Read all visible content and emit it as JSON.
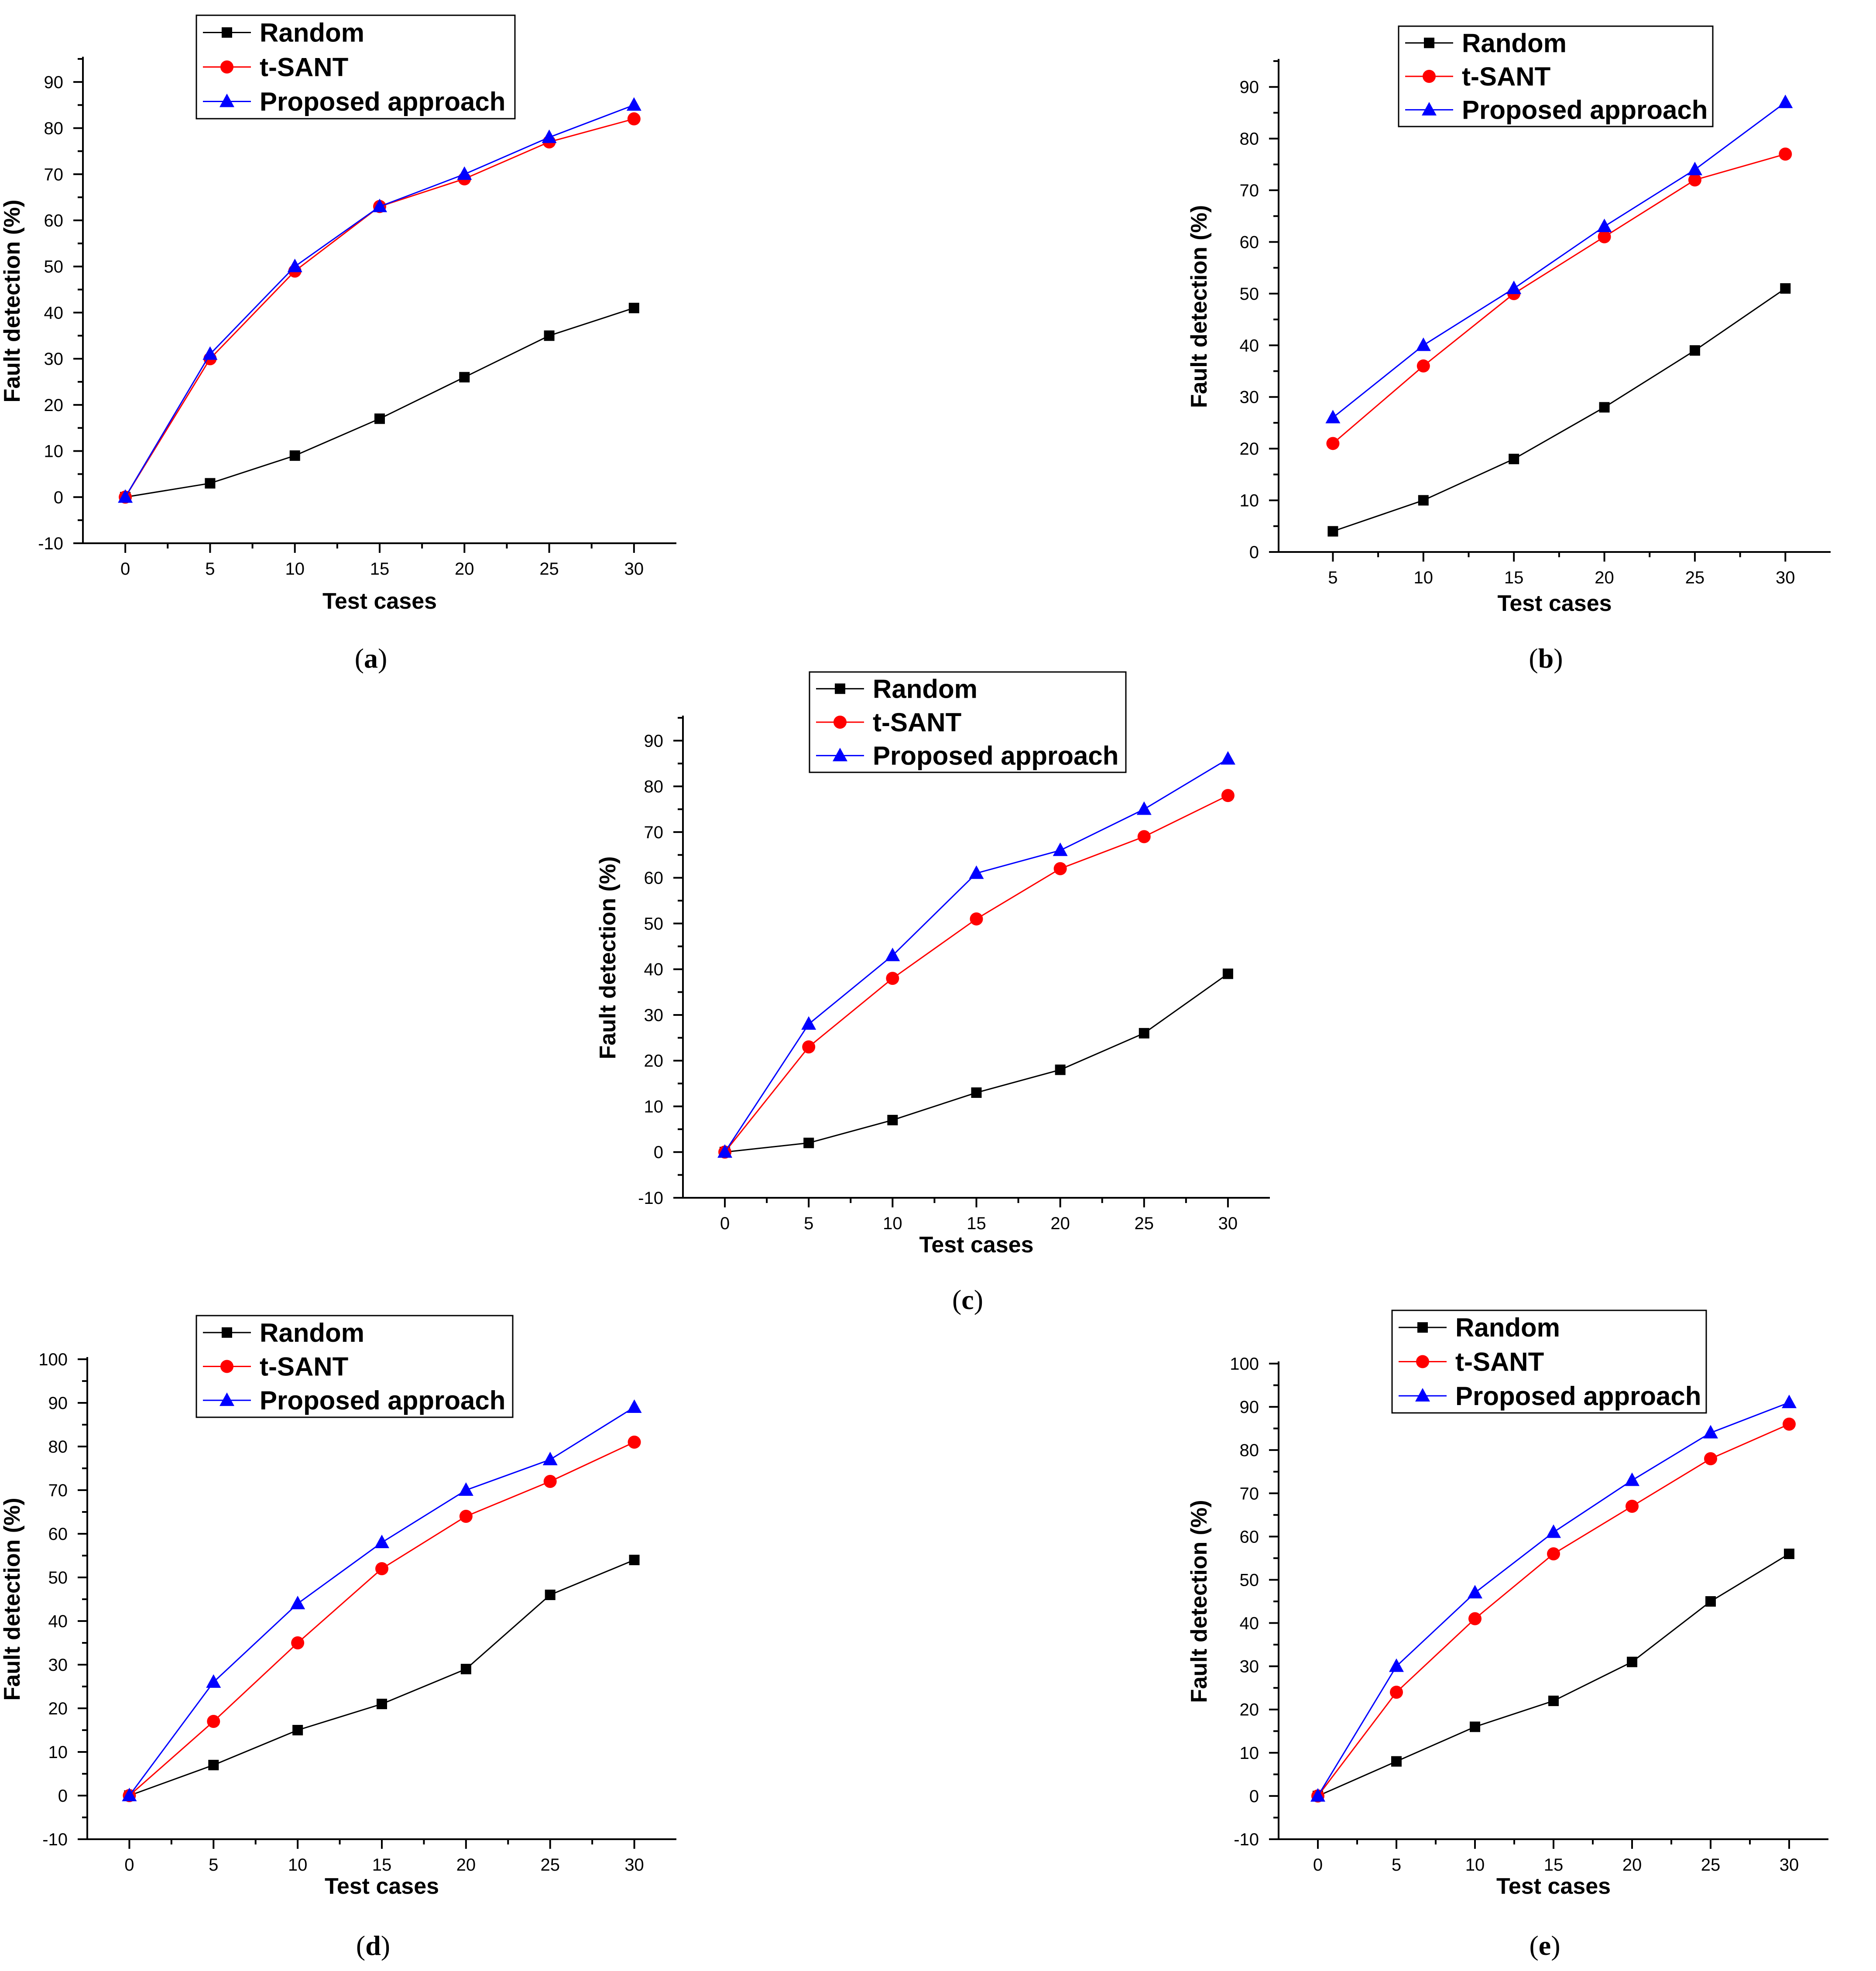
{
  "chart_data": [
    {
      "id": "a",
      "type": "line",
      "caption": "a",
      "xlabel": "Test cases",
      "ylabel": "Fault detection (%)",
      "xlim": [
        -2.5,
        32.5
      ],
      "ylim": [
        -10,
        95
      ],
      "xticks": [
        0,
        5,
        10,
        15,
        20,
        25,
        30
      ],
      "yticks": [
        -10,
        0,
        10,
        20,
        30,
        40,
        50,
        60,
        70,
        80,
        90
      ],
      "series": [
        {
          "name": "Random",
          "color": "#000000",
          "marker": "square",
          "x": [
            0,
            5,
            10,
            15,
            20,
            25,
            30
          ],
          "values": [
            0,
            3,
            9,
            17,
            26,
            35,
            41
          ]
        },
        {
          "name": "t-SANT",
          "color": "#ff0000",
          "marker": "circle",
          "x": [
            0,
            5,
            10,
            15,
            20,
            25,
            30
          ],
          "values": [
            0,
            30,
            49,
            63,
            69,
            77,
            82
          ]
        },
        {
          "name": "Proposed approach",
          "color": "#0000ff",
          "marker": "triangle",
          "x": [
            0,
            5,
            10,
            15,
            20,
            25,
            30
          ],
          "values": [
            0,
            31,
            50,
            63,
            70,
            78,
            85
          ]
        }
      ]
    },
    {
      "id": "b",
      "type": "line",
      "caption": "b",
      "xlabel": "Test cases",
      "ylabel": "Fault detection (%)",
      "xlim": [
        2.0,
        32.5
      ],
      "ylim": [
        0,
        95
      ],
      "xticks": [
        5,
        10,
        15,
        20,
        25,
        30
      ],
      "yticks": [
        0,
        10,
        20,
        30,
        40,
        50,
        60,
        70,
        80,
        90
      ],
      "series": [
        {
          "name": "Random",
          "color": "#000000",
          "marker": "square",
          "x": [
            5,
            10,
            15,
            20,
            25,
            30
          ],
          "values": [
            4,
            10,
            18,
            28,
            39,
            51
          ]
        },
        {
          "name": "t-SANT",
          "color": "#ff0000",
          "marker": "circle",
          "x": [
            5,
            10,
            15,
            20,
            25,
            30
          ],
          "values": [
            21,
            36,
            50,
            61,
            72,
            77
          ]
        },
        {
          "name": "Proposed approach",
          "color": "#0000ff",
          "marker": "triangle",
          "x": [
            5,
            10,
            15,
            20,
            25,
            30
          ],
          "values": [
            26,
            40,
            51,
            63,
            74,
            87
          ]
        }
      ]
    },
    {
      "id": "c",
      "type": "line",
      "caption": "c",
      "xlabel": "Test cases",
      "ylabel": "Fault detection (%)",
      "xlim": [
        -2.5,
        32.5
      ],
      "ylim": [
        -10,
        95
      ],
      "xticks": [
        0,
        5,
        10,
        15,
        20,
        25,
        30
      ],
      "yticks": [
        -10,
        0,
        10,
        20,
        30,
        40,
        50,
        60,
        70,
        80,
        90
      ],
      "series": [
        {
          "name": "Random",
          "color": "#000000",
          "marker": "square",
          "x": [
            0,
            5,
            10,
            15,
            20,
            25,
            30
          ],
          "values": [
            0,
            2,
            7,
            13,
            18,
            26,
            39
          ]
        },
        {
          "name": "t-SANT",
          "color": "#ff0000",
          "marker": "circle",
          "x": [
            0,
            5,
            10,
            15,
            20,
            25,
            30
          ],
          "values": [
            0,
            23,
            38,
            51,
            62,
            69,
            78
          ]
        },
        {
          "name": "Proposed approach",
          "color": "#0000ff",
          "marker": "triangle",
          "x": [
            0,
            5,
            10,
            15,
            20,
            25,
            30
          ],
          "values": [
            0,
            28,
            43,
            61,
            66,
            75,
            86
          ]
        }
      ]
    },
    {
      "id": "d",
      "type": "line",
      "caption": "d",
      "xlabel": "Test cases",
      "ylabel": "Fault detection (%)",
      "xlim": [
        -2.5,
        32.5
      ],
      "ylim": [
        -10,
        100
      ],
      "xticks": [
        0,
        5,
        10,
        15,
        20,
        25,
        30
      ],
      "yticks": [
        -10,
        0,
        10,
        20,
        30,
        40,
        50,
        60,
        70,
        80,
        90,
        100
      ],
      "series": [
        {
          "name": "Random",
          "color": "#000000",
          "marker": "square",
          "x": [
            0,
            5,
            10,
            15,
            20,
            25,
            30
          ],
          "values": [
            0,
            7,
            15,
            21,
            29,
            46,
            54
          ]
        },
        {
          "name": "t-SANT",
          "color": "#ff0000",
          "marker": "circle",
          "x": [
            0,
            5,
            10,
            15,
            20,
            25,
            30
          ],
          "values": [
            0,
            17,
            35,
            52,
            64,
            72,
            81
          ]
        },
        {
          "name": "Proposed approach",
          "color": "#0000ff",
          "marker": "triangle",
          "x": [
            0,
            5,
            10,
            15,
            20,
            25,
            30
          ],
          "values": [
            0,
            26,
            44,
            58,
            70,
            77,
            89
          ]
        }
      ]
    },
    {
      "id": "e",
      "type": "line",
      "caption": "e",
      "xlabel": "Test cases",
      "ylabel": "Fault detection (%)",
      "xlim": [
        -2.5,
        32.5
      ],
      "ylim": [
        -10,
        100
      ],
      "xticks": [
        0,
        5,
        10,
        15,
        20,
        25,
        30
      ],
      "yticks": [
        -10,
        0,
        10,
        20,
        30,
        40,
        50,
        60,
        70,
        80,
        90,
        100
      ],
      "series": [
        {
          "name": "Random",
          "color": "#000000",
          "marker": "square",
          "x": [
            0,
            5,
            10,
            15,
            20,
            25,
            30
          ],
          "values": [
            0,
            8,
            16,
            22,
            31,
            45,
            56
          ]
        },
        {
          "name": "t-SANT",
          "color": "#ff0000",
          "marker": "circle",
          "x": [
            0,
            5,
            10,
            15,
            20,
            25,
            30
          ],
          "values": [
            0,
            24,
            41,
            56,
            67,
            78,
            86
          ]
        },
        {
          "name": "Proposed approach",
          "color": "#0000ff",
          "marker": "triangle",
          "x": [
            0,
            5,
            10,
            15,
            20,
            25,
            30
          ],
          "values": [
            0,
            30,
            47,
            61,
            73,
            84,
            91
          ]
        }
      ]
    }
  ]
}
